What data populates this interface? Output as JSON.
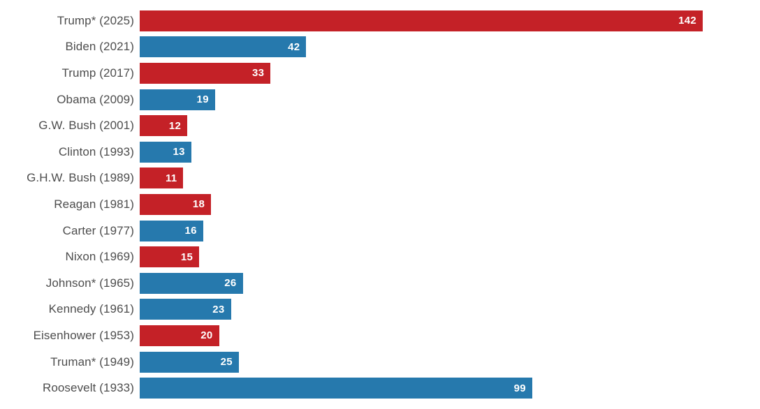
{
  "chart_data": {
    "type": "bar",
    "orientation": "horizontal",
    "title": "",
    "xlabel": "",
    "ylabel": "",
    "categories": [
      "Trump* (2025)",
      "Biden (2021)",
      "Trump (2017)",
      "Obama (2009)",
      "G.W. Bush (2001)",
      "Clinton (1993)",
      "G.H.W. Bush (1989)",
      "Reagan (1981)",
      "Carter (1977)",
      "Nixon (1969)",
      "Johnson* (1965)",
      "Kennedy (1961)",
      "Eisenhower (1953)",
      "Truman* (1949)",
      "Roosevelt (1933)"
    ],
    "values": [
      142,
      42,
      33,
      19,
      12,
      13,
      11,
      18,
      16,
      15,
      26,
      23,
      20,
      25,
      99
    ],
    "parties": [
      "R",
      "D",
      "R",
      "D",
      "R",
      "D",
      "R",
      "R",
      "D",
      "R",
      "D",
      "D",
      "R",
      "D",
      "D"
    ],
    "colors": {
      "R": "#c42127",
      "D": "#2679ad"
    },
    "label_color": "#4d4d4d",
    "value_label_color": "#ffffff",
    "value_labels_position": "inside-end",
    "xlim": [
      0,
      142
    ],
    "grid": false,
    "legend": false
  }
}
